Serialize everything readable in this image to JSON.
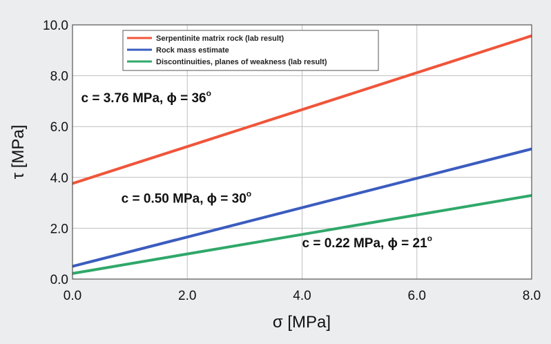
{
  "chart_data": {
    "type": "line",
    "xlabel": "σ [MPa]",
    "ylabel": "τ [MPa]",
    "xlim": [
      0,
      8
    ],
    "ylim": [
      0,
      10
    ],
    "grid": true,
    "legend_position": "top-center",
    "x_ticks": [
      "0.0",
      "2.0",
      "4.0",
      "6.0",
      "8.0"
    ],
    "y_ticks": [
      "0.0",
      "2.0",
      "4.0",
      "6.0",
      "8.0",
      "10.0"
    ],
    "series": [
      {
        "name": "Serpentinite matrix rock (lab result)",
        "color": "#f0553a",
        "x": [
          0,
          8
        ],
        "y": [
          3.76,
          9.57
        ]
      },
      {
        "name": "Rock mass estimate",
        "color": "#3b5cbf",
        "x": [
          0,
          8
        ],
        "y": [
          0.5,
          5.12
        ]
      },
      {
        "name": "Discontinuities, planes of weakness (lab result)",
        "color": "#2fa86a",
        "x": [
          0,
          8
        ],
        "y": [
          0.22,
          3.29
        ]
      }
    ],
    "annotations": [
      {
        "main": "c = 3.76 MPa, ϕ = 36",
        "sup": "o",
        "at": [
          0.15,
          6.95
        ]
      },
      {
        "main": "c = 0.50 MPa, ϕ = 30",
        "sup": "o",
        "at": [
          0.85,
          3.0
        ]
      },
      {
        "main": "c = 0.22 MPa, ϕ = 21",
        "sup": "o",
        "at": [
          4.0,
          1.25
        ]
      }
    ]
  }
}
